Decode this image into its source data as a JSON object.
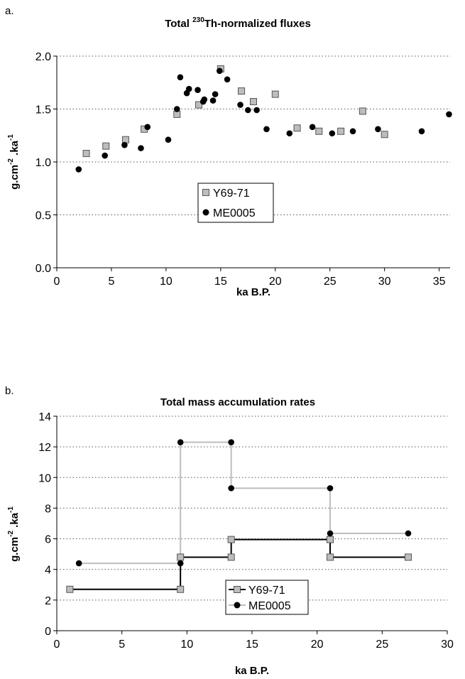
{
  "chart_data": [
    {
      "panel": "a.",
      "type": "scatter",
      "title": "Total ²³⁰Th-normalized fluxes",
      "title_parts": {
        "prefix": "Total ",
        "superscript": "230",
        "suffix": "Th-normalized fluxes"
      },
      "xlabel": "ka B.P.",
      "ylabel_parts": {
        "base": "g.cm",
        "exp1": "-2",
        "mid": " .ka",
        "exp2": "-1"
      },
      "xlim": [
        0,
        36
      ],
      "ylim": [
        0.0,
        2.0
      ],
      "xticks": [
        0,
        5,
        10,
        15,
        20,
        25,
        30,
        35
      ],
      "yticks": [
        0.0,
        0.5,
        1.0,
        1.5,
        2.0
      ],
      "ytick_labels": [
        "0.0",
        "0.5",
        "1.0",
        "1.5",
        "2.0"
      ],
      "grid": "horizontal dotted",
      "legend_position": "center",
      "series": [
        {
          "name": "Y69-71",
          "marker": "square",
          "color": "#bdbdbd",
          "x": [
            2.7,
            4.5,
            6.3,
            8.0,
            11.0,
            13.0,
            15.0,
            16.9,
            18.0,
            20.0,
            22.0,
            24.0,
            26.0,
            28.0,
            30.0
          ],
          "y": [
            1.08,
            1.15,
            1.21,
            1.31,
            1.45,
            1.54,
            1.88,
            1.67,
            1.57,
            1.64,
            1.32,
            1.29,
            1.29,
            1.48,
            1.26
          ]
        },
        {
          "name": "ME0005",
          "marker": "circle",
          "color": "#000000",
          "x": [
            2.0,
            4.4,
            6.2,
            7.7,
            8.3,
            10.2,
            11.0,
            11.3,
            11.9,
            12.1,
            12.9,
            13.4,
            13.5,
            14.3,
            14.5,
            14.9,
            15.6,
            16.8,
            17.5,
            18.3,
            19.2,
            21.3,
            23.4,
            25.2,
            27.1,
            29.4,
            33.4,
            35.9
          ],
          "y": [
            0.93,
            1.06,
            1.16,
            1.13,
            1.33,
            1.21,
            1.5,
            1.8,
            1.65,
            1.69,
            1.68,
            1.57,
            1.59,
            1.58,
            1.64,
            1.86,
            1.78,
            1.54,
            1.49,
            1.49,
            1.31,
            1.27,
            1.33,
            1.27,
            1.29,
            1.31,
            1.29,
            1.45
          ]
        }
      ]
    },
    {
      "panel": "b.",
      "type": "line",
      "title": "Total mass accumulation rates",
      "xlabel": "ka B.P.",
      "ylabel_parts": {
        "base": "g.cm",
        "exp1": "-2",
        "mid": " .ka",
        "exp2": "-1"
      },
      "xlim": [
        0,
        30
      ],
      "ylim": [
        0,
        14
      ],
      "xticks": [
        0,
        5,
        10,
        15,
        20,
        25,
        30
      ],
      "yticks": [
        0,
        2,
        4,
        6,
        8,
        10,
        12,
        14
      ],
      "ytick_labels": [
        "0",
        "2",
        "4",
        "6",
        "8",
        "10",
        "12",
        "14"
      ],
      "grid": "horizontal dotted",
      "legend_position": "lower-center",
      "series": [
        {
          "name": "Y69-71",
          "marker": "square",
          "color": "#000000",
          "marker_color": "#bdbdbd",
          "x": [
            1.0,
            9.5,
            9.5,
            13.4,
            13.4,
            21.0,
            21.0,
            27.0
          ],
          "y": [
            2.7,
            2.7,
            4.8,
            4.8,
            5.95,
            5.95,
            4.8,
            4.8
          ]
        },
        {
          "name": "ME0005",
          "marker": "circle",
          "color": "#bdbdbd",
          "marker_color": "#000000",
          "x": [
            1.7,
            9.5,
            9.5,
            13.4,
            13.4,
            21.0,
            21.0,
            27.0
          ],
          "y": [
            4.4,
            4.4,
            12.3,
            12.3,
            9.3,
            9.3,
            6.35,
            6.35
          ]
        }
      ]
    }
  ]
}
